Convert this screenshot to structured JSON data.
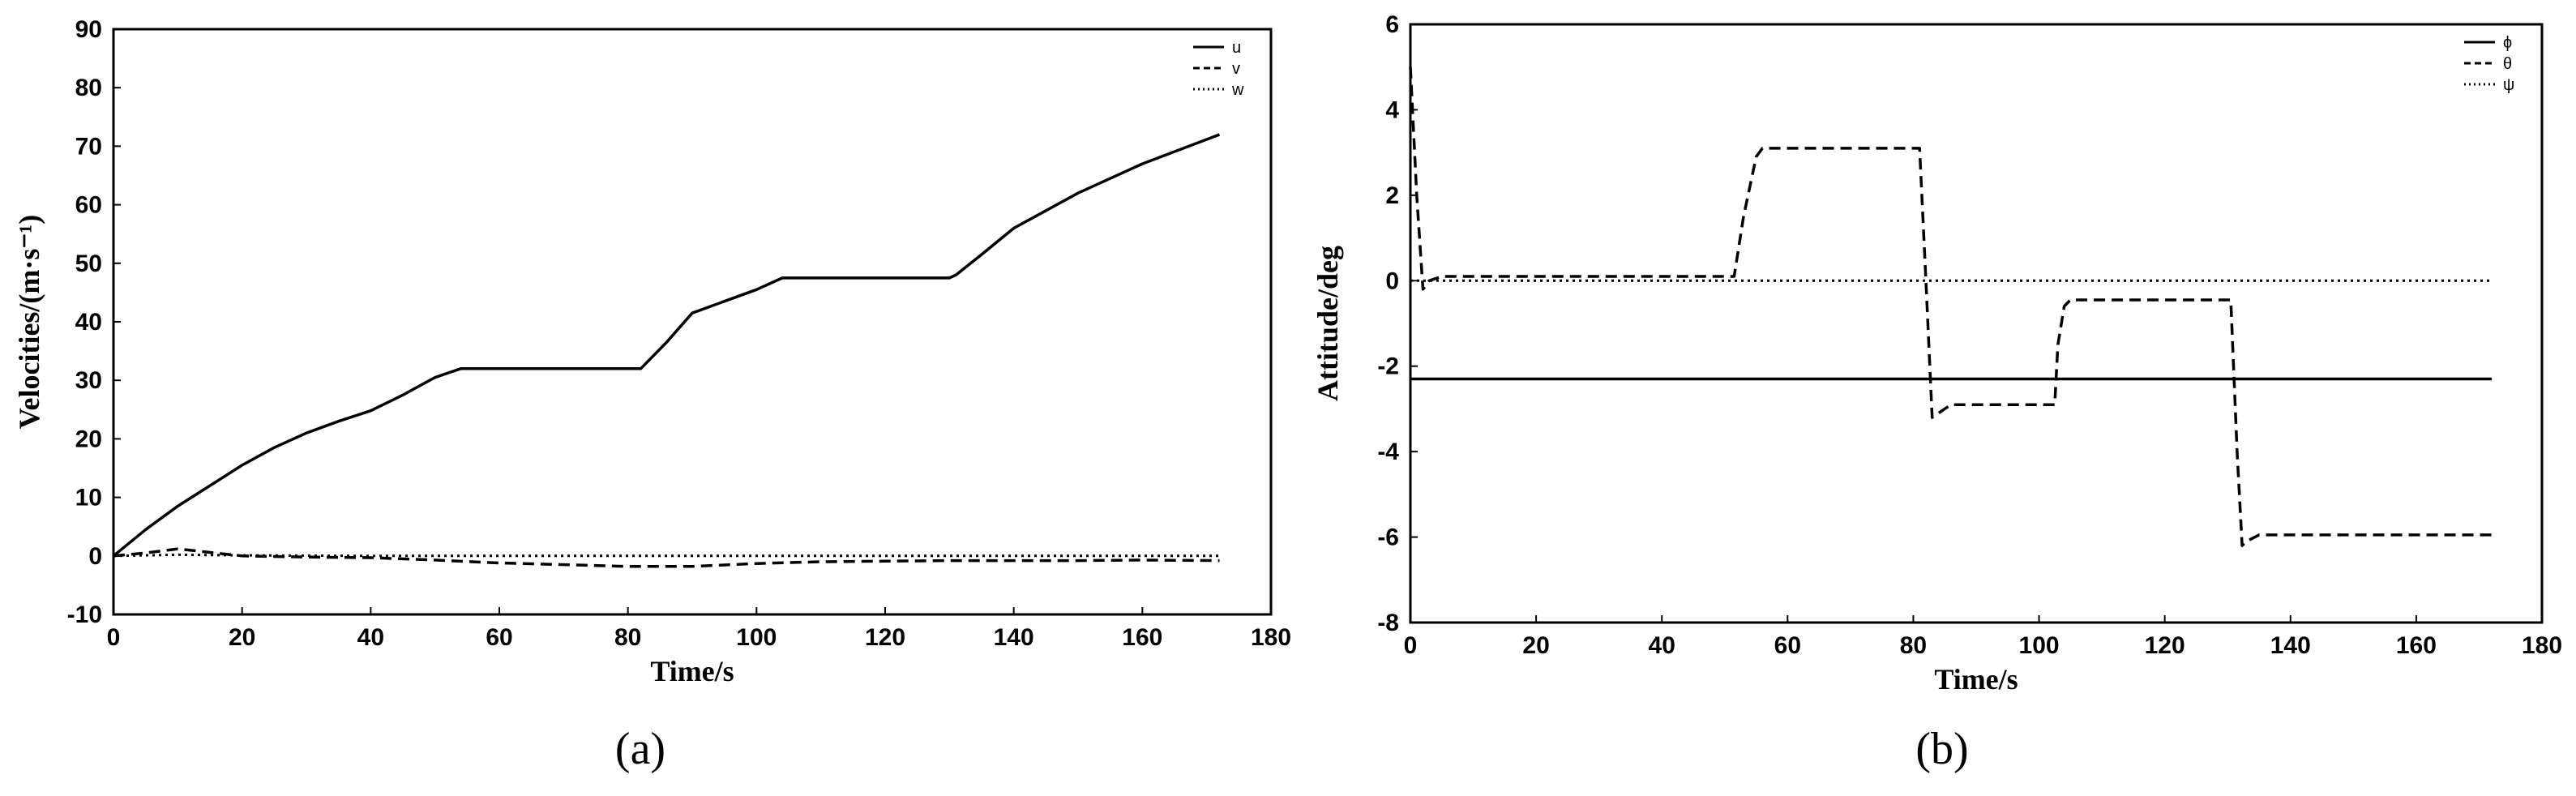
{
  "chart_data": [
    {
      "type": "line",
      "caption": "(a)",
      "xlabel": "Time/s",
      "ylabel": "Velocities/(m·s⁻¹)",
      "xlim": [
        0,
        180
      ],
      "ylim": [
        -10,
        90
      ],
      "xticks": [
        "0",
        "20",
        "40",
        "60",
        "80",
        "100",
        "120",
        "140",
        "160",
        "180"
      ],
      "yticks": [
        "-10",
        "0",
        "10",
        "20",
        "30",
        "40",
        "50",
        "60",
        "70",
        "80",
        "90"
      ],
      "legend_position": "top-right",
      "series": [
        {
          "name": "u",
          "style": "solid",
          "x": [
            0,
            5,
            10,
            15,
            20,
            25,
            30,
            35,
            40,
            45,
            50,
            54,
            60,
            70,
            82,
            86,
            90,
            95,
            100,
            104,
            110,
            120,
            130,
            131,
            135,
            140,
            150,
            160,
            172
          ],
          "y": [
            0,
            4.5,
            8.5,
            12,
            15.5,
            18.5,
            21,
            23,
            24.8,
            27.5,
            30.5,
            32,
            32,
            32,
            32,
            36.5,
            41.5,
            43.5,
            45.5,
            47.5,
            47.5,
            47.5,
            47.5,
            48,
            51.5,
            56,
            62,
            67,
            72
          ]
        },
        {
          "name": "v",
          "style": "dashed",
          "x": [
            0,
            5,
            10,
            15,
            20,
            30,
            40,
            50,
            60,
            70,
            80,
            90,
            100,
            110,
            120,
            130,
            140,
            150,
            160,
            172
          ],
          "y": [
            0,
            0.5,
            1.2,
            0.6,
            0,
            -0.2,
            -0.3,
            -0.7,
            -1.2,
            -1.5,
            -1.8,
            -1.8,
            -1.3,
            -1,
            -0.9,
            -0.8,
            -0.8,
            -0.8,
            -0.7,
            -0.8
          ]
        },
        {
          "name": "w",
          "style": "dotted",
          "x": [
            0,
            10,
            20,
            40,
            60,
            80,
            100,
            120,
            140,
            160,
            172
          ],
          "y": [
            0,
            0.2,
            0.1,
            0,
            0,
            0,
            0,
            0,
            0,
            0,
            0
          ]
        }
      ]
    },
    {
      "type": "line",
      "caption": "(b)",
      "xlabel": "Time/s",
      "ylabel": "Attitude/deg",
      "xlim": [
        0,
        180
      ],
      "ylim": [
        -8,
        6
      ],
      "xticks": [
        "0",
        "20",
        "40",
        "60",
        "80",
        "100",
        "120",
        "140",
        "160",
        "180"
      ],
      "yticks": [
        "-8",
        "-6",
        "-4",
        "-2",
        "0",
        "2",
        "4",
        "6"
      ],
      "legend_position": "top-right",
      "series": [
        {
          "name": "ϕ",
          "style": "solid",
          "x": [
            0,
            172
          ],
          "y": [
            -2.3,
            -2.3
          ]
        },
        {
          "name": "θ",
          "style": "dashed",
          "x": [
            0,
            1,
            2,
            3,
            5,
            20,
            51.5,
            53,
            55,
            56,
            70,
            81,
            82,
            83,
            84,
            86,
            102.5,
            103,
            104,
            105,
            120,
            130.5,
            131.5,
            132.3,
            133,
            135,
            172
          ],
          "y": [
            5,
            2,
            -0.2,
            0,
            0.1,
            0.1,
            0.1,
            1.5,
            2.9,
            3.1,
            3.1,
            3.1,
            0,
            -3.2,
            -3.1,
            -2.9,
            -2.9,
            -1.5,
            -0.6,
            -0.45,
            -0.45,
            -0.45,
            -4,
            -6.2,
            -6.1,
            -5.95,
            -5.95
          ]
        },
        {
          "name": "ψ",
          "style": "dotted",
          "x": [
            0,
            172
          ],
          "y": [
            0,
            0
          ]
        }
      ]
    }
  ]
}
